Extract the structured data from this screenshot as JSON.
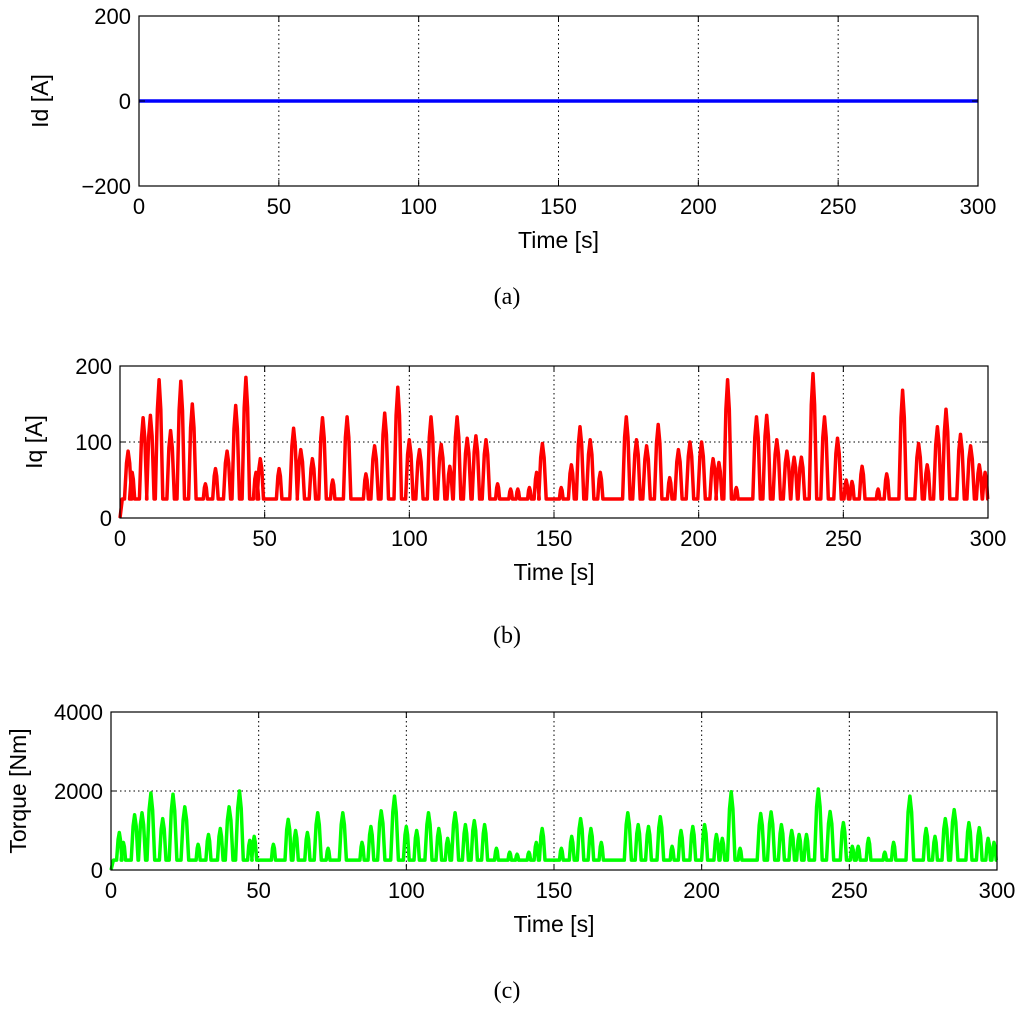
{
  "chart_data": [
    {
      "type": "line",
      "caption": "(a)",
      "xlabel": "Time [s]",
      "ylabel": "Id [A]",
      "xlim": [
        0,
        300
      ],
      "ylim": [
        -200,
        200
      ],
      "xticks": [
        0,
        50,
        100,
        150,
        200,
        250,
        300
      ],
      "yticks": [
        -200,
        0,
        200
      ],
      "ytick_labels": [
        "−200",
        "0",
        "200"
      ],
      "grid": true,
      "series": [
        {
          "color": "#0000ff",
          "baseline": 0,
          "x": [
            0,
            300
          ],
          "y": [
            0,
            0
          ]
        }
      ]
    },
    {
      "type": "line",
      "caption": "(b)",
      "xlabel": "Time [s]",
      "ylabel": "Iq [A]",
      "xlim": [
        0,
        300
      ],
      "ylim": [
        0,
        200
      ],
      "xticks": [
        0,
        50,
        100,
        150,
        200,
        250,
        300
      ],
      "yticks": [
        0,
        100,
        200
      ],
      "ytick_labels": [
        "0",
        "100",
        "200"
      ],
      "grid": true,
      "series": [
        {
          "color": "#ff0000",
          "baseline": 25,
          "peaks": [
            [
              2.8,
              88
            ],
            [
              4.2,
              60
            ],
            [
              8,
              132
            ],
            [
              10.5,
              135
            ],
            [
              13.5,
              182
            ],
            [
              17.5,
              115
            ],
            [
              21,
              180
            ],
            [
              25,
              150
            ],
            [
              29.5,
              45
            ],
            [
              33,
              65
            ],
            [
              37,
              88
            ],
            [
              40,
              148
            ],
            [
              43.5,
              185
            ],
            [
              47,
              60
            ],
            [
              48.5,
              78
            ],
            [
              55,
              65
            ],
            [
              60,
              118
            ],
            [
              62.5,
              90
            ],
            [
              66.5,
              78
            ],
            [
              70,
              132
            ],
            [
              73.5,
              50
            ],
            [
              78.5,
              133
            ],
            [
              85,
              58
            ],
            [
              88,
              95
            ],
            [
              91.5,
              138
            ],
            [
              96,
              172
            ],
            [
              100,
              103
            ],
            [
              103.5,
              90
            ],
            [
              107.5,
              133
            ],
            [
              111,
              97
            ],
            [
              114,
              68
            ],
            [
              116.5,
              133
            ],
            [
              120,
              105
            ],
            [
              123,
              108
            ],
            [
              126.5,
              103
            ],
            [
              130.5,
              45
            ],
            [
              135,
              38
            ],
            [
              137.5,
              38
            ],
            [
              141.5,
              40
            ],
            [
              144,
              60
            ],
            [
              146,
              98
            ],
            [
              152.5,
              40
            ],
            [
              156,
              70
            ],
            [
              159,
              120
            ],
            [
              162.5,
              103
            ],
            [
              166,
              60
            ],
            [
              175,
              133
            ],
            [
              178.5,
              103
            ],
            [
              182,
              95
            ],
            [
              186,
              123
            ],
            [
              190,
              53
            ],
            [
              193,
              90
            ],
            [
              197,
              100
            ],
            [
              201,
              100
            ],
            [
              205,
              78
            ],
            [
              207,
              73
            ],
            [
              210,
              182
            ],
            [
              213,
              40
            ],
            [
              220,
              133
            ],
            [
              223.5,
              135
            ],
            [
              227,
              103
            ],
            [
              230.5,
              88
            ],
            [
              233,
              80
            ],
            [
              235.5,
              80
            ],
            [
              239.5,
              190
            ],
            [
              243.5,
              133
            ],
            [
              248,
              105
            ],
            [
              251,
              50
            ],
            [
              253,
              48
            ],
            [
              256.5,
              68
            ],
            [
              262,
              38
            ],
            [
              265,
              58
            ],
            [
              270.5,
              168
            ],
            [
              276,
              98
            ],
            [
              279,
              70
            ],
            [
              282.5,
              120
            ],
            [
              285.5,
              143
            ],
            [
              290.5,
              110
            ],
            [
              294,
              95
            ],
            [
              297,
              70
            ],
            [
              299,
              60
            ]
          ]
        }
      ]
    },
    {
      "type": "line",
      "caption": "(c)",
      "xlabel": "Time [s]",
      "ylabel": "Torque [Nm]",
      "xlim": [
        0,
        300
      ],
      "ylim": [
        0,
        4000
      ],
      "xticks": [
        0,
        50,
        100,
        150,
        200,
        250,
        300
      ],
      "yticks": [
        0,
        2000,
        4000
      ],
      "ytick_labels": [
        "0",
        "2000",
        "4000"
      ],
      "grid": true,
      "series": [
        {
          "color": "#00ff00",
          "baseline": 250,
          "peaks": [
            [
              2.8,
              950
            ],
            [
              4.2,
              700
            ],
            [
              8,
              1400
            ],
            [
              10.5,
              1450
            ],
            [
              13.5,
              1950
            ],
            [
              17.5,
              1300
            ],
            [
              21,
              1920
            ],
            [
              25,
              1600
            ],
            [
              29.5,
              650
            ],
            [
              33,
              900
            ],
            [
              37,
              1050
            ],
            [
              40,
              1600
            ],
            [
              43.5,
              2000
            ],
            [
              47,
              750
            ],
            [
              48.5,
              850
            ],
            [
              55,
              650
            ],
            [
              60,
              1280
            ],
            [
              62.5,
              1000
            ],
            [
              66.5,
              950
            ],
            [
              70,
              1450
            ],
            [
              73.5,
              550
            ],
            [
              78.5,
              1450
            ],
            [
              85,
              700
            ],
            [
              88,
              1100
            ],
            [
              91.5,
              1500
            ],
            [
              96,
              1870
            ],
            [
              100,
              1100
            ],
            [
              103.5,
              1000
            ],
            [
              107.5,
              1450
            ],
            [
              111,
              1050
            ],
            [
              114,
              800
            ],
            [
              116.5,
              1450
            ],
            [
              120,
              1150
            ],
            [
              123,
              1250
            ],
            [
              126.5,
              1150
            ],
            [
              130.5,
              550
            ],
            [
              135,
              450
            ],
            [
              137.5,
              400
            ],
            [
              141.5,
              450
            ],
            [
              144,
              700
            ],
            [
              146,
              1050
            ],
            [
              152.5,
              550
            ],
            [
              156,
              850
            ],
            [
              159,
              1300
            ],
            [
              162.5,
              1050
            ],
            [
              166,
              700
            ],
            [
              175,
              1450
            ],
            [
              178.5,
              1150
            ],
            [
              182,
              1100
            ],
            [
              186,
              1350
            ],
            [
              190,
              600
            ],
            [
              193,
              1000
            ],
            [
              197,
              1100
            ],
            [
              201,
              1150
            ],
            [
              205,
              900
            ],
            [
              207,
              800
            ],
            [
              210,
              1980
            ],
            [
              213,
              550
            ],
            [
              220,
              1430
            ],
            [
              223.5,
              1470
            ],
            [
              227,
              1150
            ],
            [
              230.5,
              1000
            ],
            [
              233,
              900
            ],
            [
              235.5,
              900
            ],
            [
              239.5,
              2050
            ],
            [
              243.5,
              1480
            ],
            [
              248,
              1200
            ],
            [
              251,
              600
            ],
            [
              253,
              600
            ],
            [
              256.5,
              800
            ],
            [
              262,
              450
            ],
            [
              265,
              700
            ],
            [
              270.5,
              1870
            ],
            [
              276,
              1050
            ],
            [
              279,
              850
            ],
            [
              282.5,
              1300
            ],
            [
              285.5,
              1530
            ],
            [
              290.5,
              1200
            ],
            [
              294,
              1070
            ],
            [
              297,
              800
            ],
            [
              299,
              700
            ]
          ]
        }
      ]
    }
  ]
}
